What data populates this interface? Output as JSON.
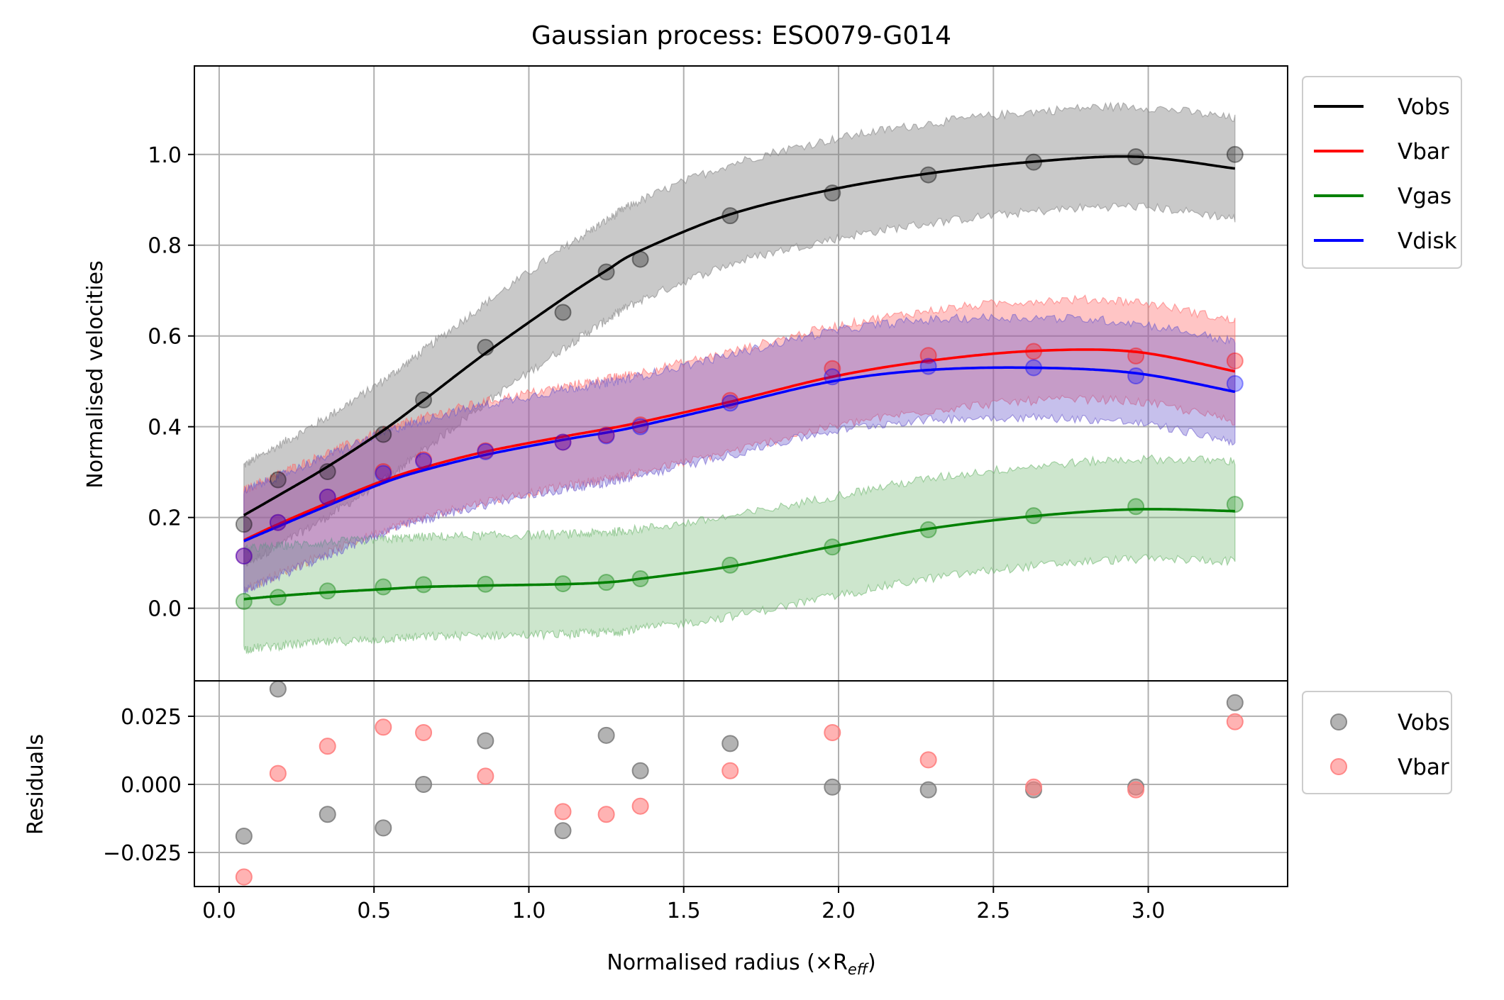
{
  "chart_data": [
    {
      "type": "line",
      "panel": "main",
      "title": "Gaussian process: ESO079-G014",
      "xlabel": "",
      "ylabel": "Normalised velocities",
      "xlim": [
        -0.08,
        3.45
      ],
      "ylim": [
        -0.16,
        1.195
      ],
      "xticks": [
        "0.0",
        "0.5",
        "1.0",
        "1.5",
        "2.0",
        "2.5",
        "3.0"
      ],
      "xtick_values": [
        0,
        0.5,
        1.0,
        1.5,
        2.0,
        2.5,
        3.0
      ],
      "yticks": [
        "0.0",
        "0.2",
        "0.4",
        "0.6",
        "0.8",
        "1.0"
      ],
      "ytick_values": [
        0,
        0.2,
        0.4,
        0.6,
        0.8,
        1.0
      ],
      "grid": true,
      "legend_placement": "outside-top-right",
      "band_halfwidth": 0.11,
      "x": [
        0.08,
        0.19,
        0.35,
        0.53,
        0.66,
        0.86,
        1.11,
        1.25,
        1.36,
        1.65,
        1.98,
        2.29,
        2.63,
        2.96,
        3.28
      ],
      "series": [
        {
          "name": "Vobs",
          "color": "#000000",
          "points": [
            0.185,
            0.283,
            0.301,
            0.383,
            0.459,
            0.575,
            0.652,
            0.741,
            0.769,
            0.865,
            0.915,
            0.955,
            0.983,
            0.995,
            1.0
          ],
          "fit": [
            0.205,
            0.248,
            0.312,
            0.392,
            0.458,
            0.562,
            0.682,
            0.744,
            0.788,
            0.868,
            0.923,
            0.958,
            0.984,
            0.995,
            0.969
          ]
        },
        {
          "name": "Vbar",
          "color": "#ff0000",
          "points": [
            0.115,
            0.189,
            0.245,
            0.301,
            0.327,
            0.347,
            0.366,
            0.382,
            0.404,
            0.458,
            0.528,
            0.557,
            0.566,
            0.556,
            0.545
          ],
          "fit": [
            0.15,
            0.185,
            0.232,
            0.281,
            0.31,
            0.345,
            0.378,
            0.395,
            0.41,
            0.455,
            0.51,
            0.545,
            0.567,
            0.565,
            0.522
          ]
        },
        {
          "name": "Vgas",
          "color": "#008000",
          "points": [
            0.015,
            0.024,
            0.038,
            0.047,
            0.052,
            0.053,
            0.054,
            0.057,
            0.065,
            0.095,
            0.135,
            0.173,
            0.204,
            0.224,
            0.229
          ],
          "fit": [
            0.02,
            0.027,
            0.035,
            0.042,
            0.047,
            0.05,
            0.053,
            0.057,
            0.065,
            0.092,
            0.136,
            0.175,
            0.203,
            0.218,
            0.214
          ]
        },
        {
          "name": "Vdisk",
          "color": "#0000ff",
          "points": [
            0.115,
            0.189,
            0.245,
            0.297,
            0.324,
            0.345,
            0.366,
            0.38,
            0.4,
            0.452,
            0.51,
            0.533,
            0.53,
            0.512,
            0.495
          ],
          "fit": [
            0.148,
            0.18,
            0.226,
            0.276,
            0.304,
            0.338,
            0.371,
            0.387,
            0.402,
            0.448,
            0.5,
            0.525,
            0.53,
            0.518,
            0.477
          ]
        }
      ]
    },
    {
      "type": "scatter",
      "panel": "residuals",
      "xlabel": "Normalised radius (×R",
      "xlabel_sub": "eff",
      "xlabel_close": ")",
      "ylabel": "Residuals",
      "xlim": [
        -0.08,
        3.45
      ],
      "ylim": [
        -0.0375,
        0.038
      ],
      "yticks": [
        "0.025",
        "0.000",
        "−0.025"
      ],
      "ytick_values": [
        0.025,
        0.0,
        -0.025
      ],
      "grid": true,
      "legend_placement": "outside-right",
      "x": [
        0.08,
        0.19,
        0.35,
        0.53,
        0.66,
        0.86,
        1.11,
        1.25,
        1.36,
        1.65,
        1.98,
        2.29,
        2.63,
        2.96,
        3.28
      ],
      "series": [
        {
          "name": "Vobs",
          "color": "#808080",
          "values": [
            -0.019,
            0.035,
            -0.011,
            -0.016,
            0.0,
            0.016,
            -0.017,
            0.018,
            0.005,
            0.015,
            -0.001,
            -0.002,
            -0.002,
            -0.001,
            0.03
          ]
        },
        {
          "name": "Vbar",
          "color": "#ff8080",
          "values": [
            -0.034,
            0.004,
            0.014,
            0.021,
            0.019,
            0.003,
            -0.01,
            -0.011,
            -0.008,
            0.005,
            0.019,
            0.009,
            -0.001,
            -0.002,
            0.023
          ]
        }
      ]
    }
  ]
}
